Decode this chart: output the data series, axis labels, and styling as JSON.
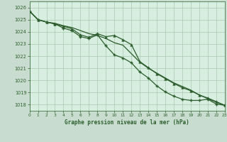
{
  "title": "Graphe pression niveau de la mer (hPa)",
  "background_color": "#c8ddd0",
  "plot_bg_color": "#d8eee0",
  "grid_color": "#a8c8b0",
  "line_color": "#2d5e2d",
  "marker_color": "#2d5e2d",
  "xlim": [
    0,
    23
  ],
  "ylim": [
    1017.5,
    1026.5
  ],
  "yticks": [
    1018,
    1019,
    1020,
    1021,
    1022,
    1023,
    1024,
    1025,
    1026
  ],
  "xticks": [
    0,
    1,
    2,
    3,
    4,
    5,
    6,
    7,
    8,
    9,
    10,
    11,
    12,
    13,
    14,
    15,
    16,
    17,
    18,
    19,
    20,
    21,
    22,
    23
  ],
  "series1_x": [
    0,
    1,
    2,
    3,
    4,
    5,
    6,
    7,
    8,
    9,
    10,
    11,
    12,
    13,
    14,
    15,
    16,
    17,
    18,
    19,
    20,
    21,
    22,
    23
  ],
  "series1_y": [
    1025.7,
    1025.0,
    1024.8,
    1024.7,
    1024.5,
    1024.35,
    1024.1,
    1023.85,
    1023.7,
    1023.45,
    1023.1,
    1022.9,
    1022.2,
    1021.5,
    1021.0,
    1020.6,
    1020.2,
    1019.8,
    1019.5,
    1019.2,
    1018.8,
    1018.5,
    1018.2,
    1017.95
  ],
  "series2_x": [
    0,
    1,
    2,
    3,
    4,
    5,
    6,
    7,
    8,
    9,
    10,
    11,
    12,
    13,
    14,
    15,
    16,
    17,
    18,
    19,
    20,
    21,
    22,
    23
  ],
  "series2_y": [
    1025.7,
    1025.0,
    1024.8,
    1024.65,
    1024.45,
    1024.25,
    1023.75,
    1023.55,
    1023.85,
    1023.6,
    1023.7,
    1023.35,
    1022.95,
    1021.55,
    1021.05,
    1020.55,
    1020.15,
    1019.75,
    1019.4,
    1019.15,
    1018.8,
    1018.55,
    1018.25,
    1017.95
  ],
  "series3_x": [
    0,
    1,
    2,
    3,
    4,
    5,
    6,
    7,
    8,
    9,
    10,
    11,
    12,
    13,
    14,
    15,
    16,
    17,
    18,
    19,
    20,
    21,
    22,
    23
  ],
  "series3_y": [
    1025.7,
    1025.0,
    1024.8,
    1024.65,
    1024.3,
    1024.1,
    1023.6,
    1023.45,
    1023.75,
    1022.85,
    1022.1,
    1021.85,
    1021.45,
    1020.7,
    1020.2,
    1019.55,
    1019.05,
    1018.7,
    1018.45,
    1018.35,
    1018.35,
    1018.45,
    1018.05,
    1017.95
  ]
}
